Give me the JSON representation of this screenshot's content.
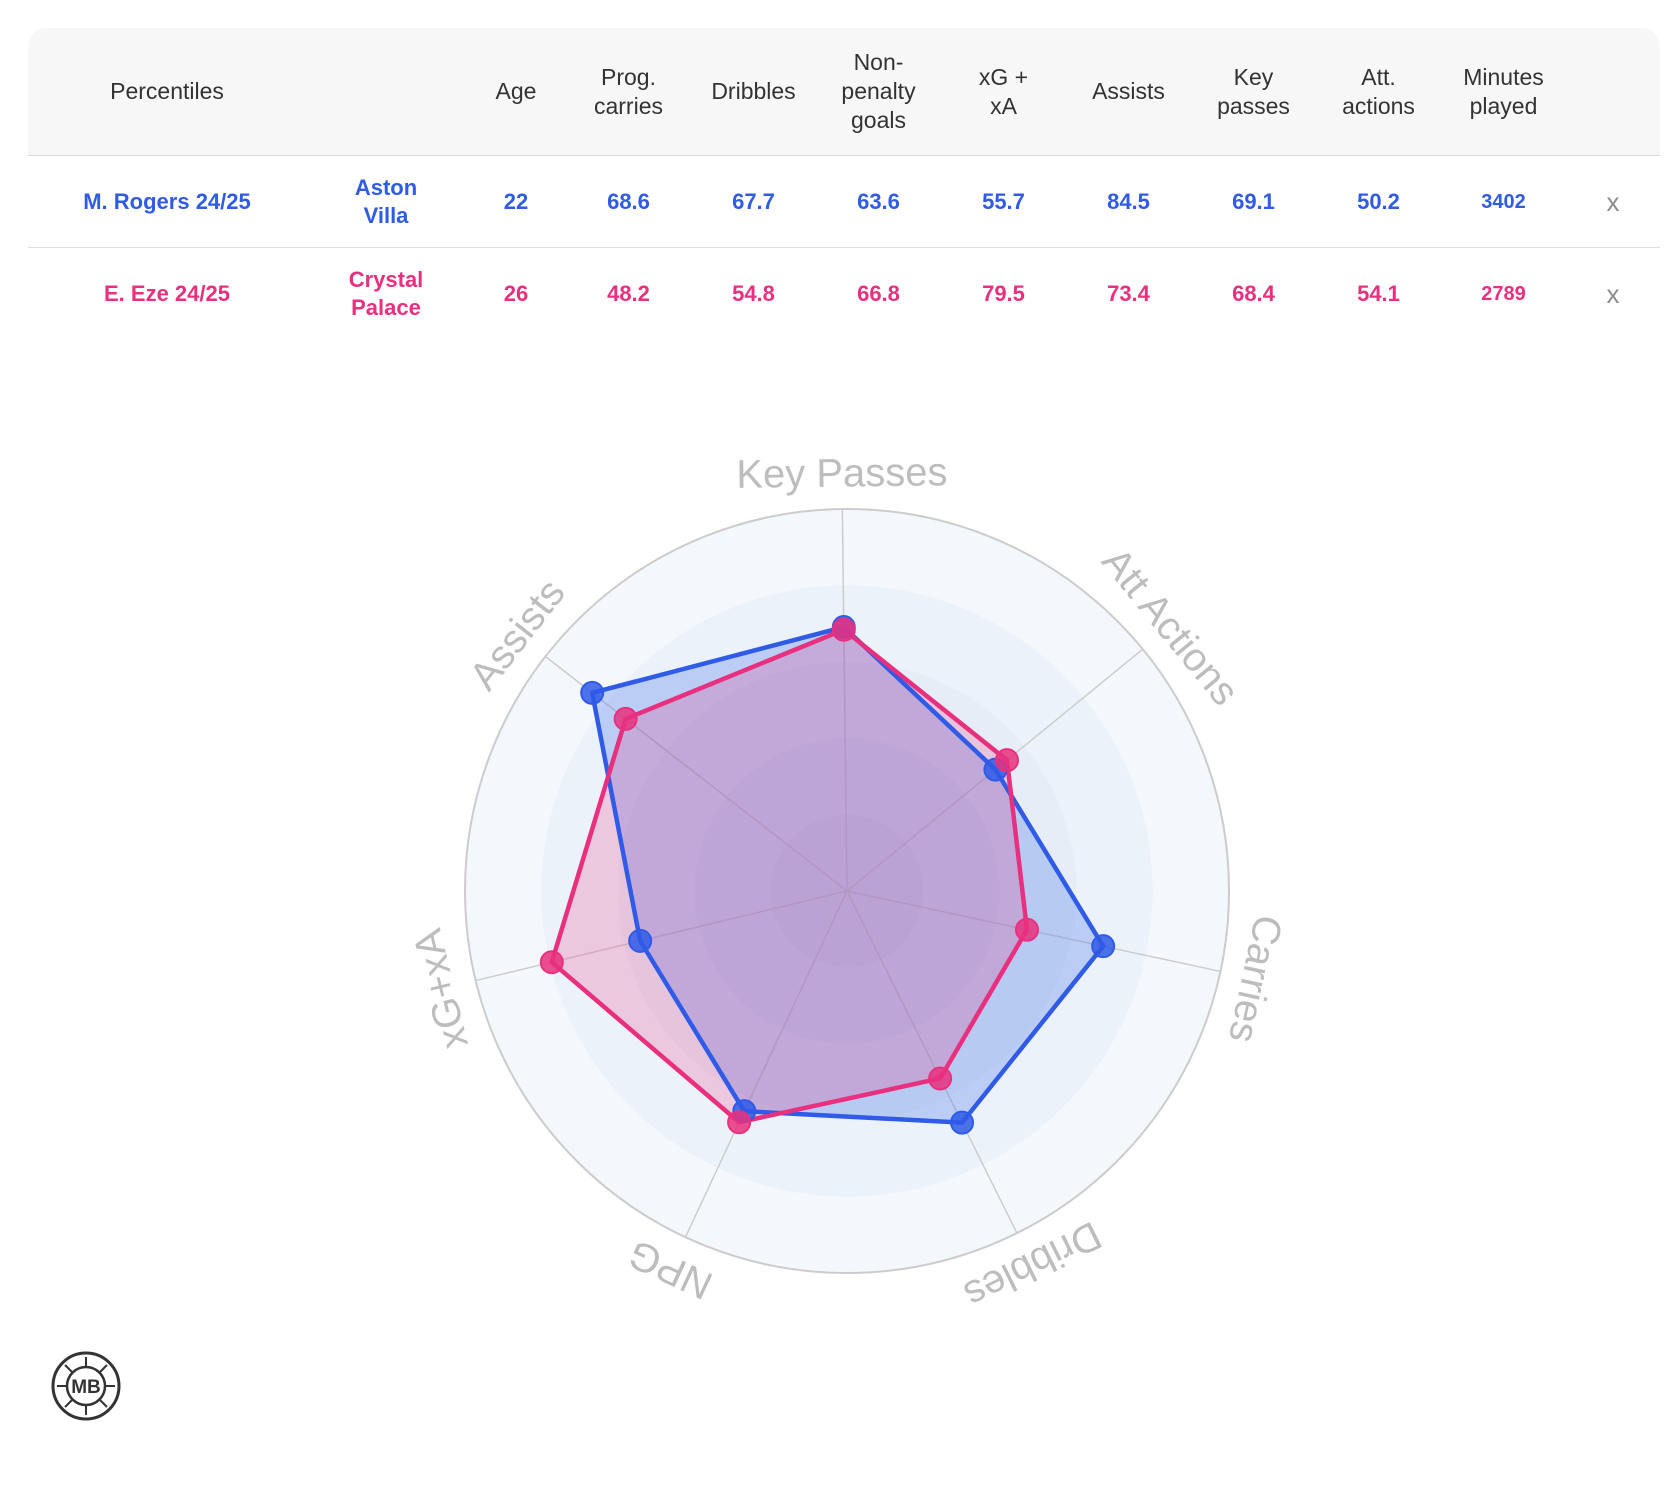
{
  "table": {
    "headers": [
      "Percentiles",
      "",
      "Age",
      "Prog. carries",
      "Dribbles",
      "Non-penalty goals",
      "xG + xA",
      "Assists",
      "Key passes",
      "Att. actions",
      "Minutes played",
      ""
    ],
    "header_lines": [
      [
        "Percentiles"
      ],
      [
        ""
      ],
      [
        "Age"
      ],
      [
        "Prog.",
        "carries"
      ],
      [
        "Dribbles"
      ],
      [
        "Non-",
        "penalty",
        "goals"
      ],
      [
        "xG +",
        "xA"
      ],
      [
        "Assists"
      ],
      [
        "Key",
        "passes"
      ],
      [
        "Att.",
        "actions"
      ],
      [
        "Minutes",
        "played"
      ],
      [
        ""
      ]
    ],
    "rows": [
      {
        "player": "M. Rogers 24/25",
        "team_lines": [
          "Aston",
          "Villa"
        ],
        "age": "22",
        "prog_carries": "68.6",
        "dribbles": "67.7",
        "npg": "63.6",
        "xg_xa": "55.7",
        "assists": "84.5",
        "key_passes": "69.1",
        "att_actions": "50.2",
        "minutes": "3402",
        "remove": "x",
        "color": "#2f5be6"
      },
      {
        "player": "E. Eze 24/25",
        "team_lines": [
          "Crystal",
          "Palace"
        ],
        "age": "26",
        "prog_carries": "48.2",
        "dribbles": "54.8",
        "npg": "66.8",
        "xg_xa": "79.5",
        "assists": "73.4",
        "key_passes": "68.4",
        "att_actions": "54.1",
        "minutes": "2789",
        "remove": "x",
        "color": "#e8307e"
      }
    ]
  },
  "chart_data": {
    "type": "radar",
    "axes": [
      "Key Passes",
      "Att Actions",
      "Carries",
      "Dribbles",
      "NPG",
      "xG+xA",
      "Assists"
    ],
    "range": [
      0,
      100
    ],
    "series": [
      {
        "name": "M. Rogers 24/25",
        "values": [
          69.1,
          50.2,
          68.6,
          67.7,
          63.6,
          55.7,
          84.5
        ],
        "color": "#2f5be6",
        "fill": "rgba(60,110,235,0.28)"
      },
      {
        "name": "E. Eze 24/25",
        "values": [
          68.4,
          54.1,
          48.2,
          54.8,
          66.8,
          79.5,
          73.4
        ],
        "color": "#e8307e",
        "fill": "rgba(232,48,126,0.22)"
      }
    ],
    "gridline_color": "#cccccc",
    "label_color": "#bdbdbd",
    "band_colors": [
      "#f4f7fc",
      "#ecf2f9",
      "#e6edf6",
      "#e0e8f3",
      "#dae3ee"
    ]
  },
  "logo": {
    "text": "MB"
  }
}
